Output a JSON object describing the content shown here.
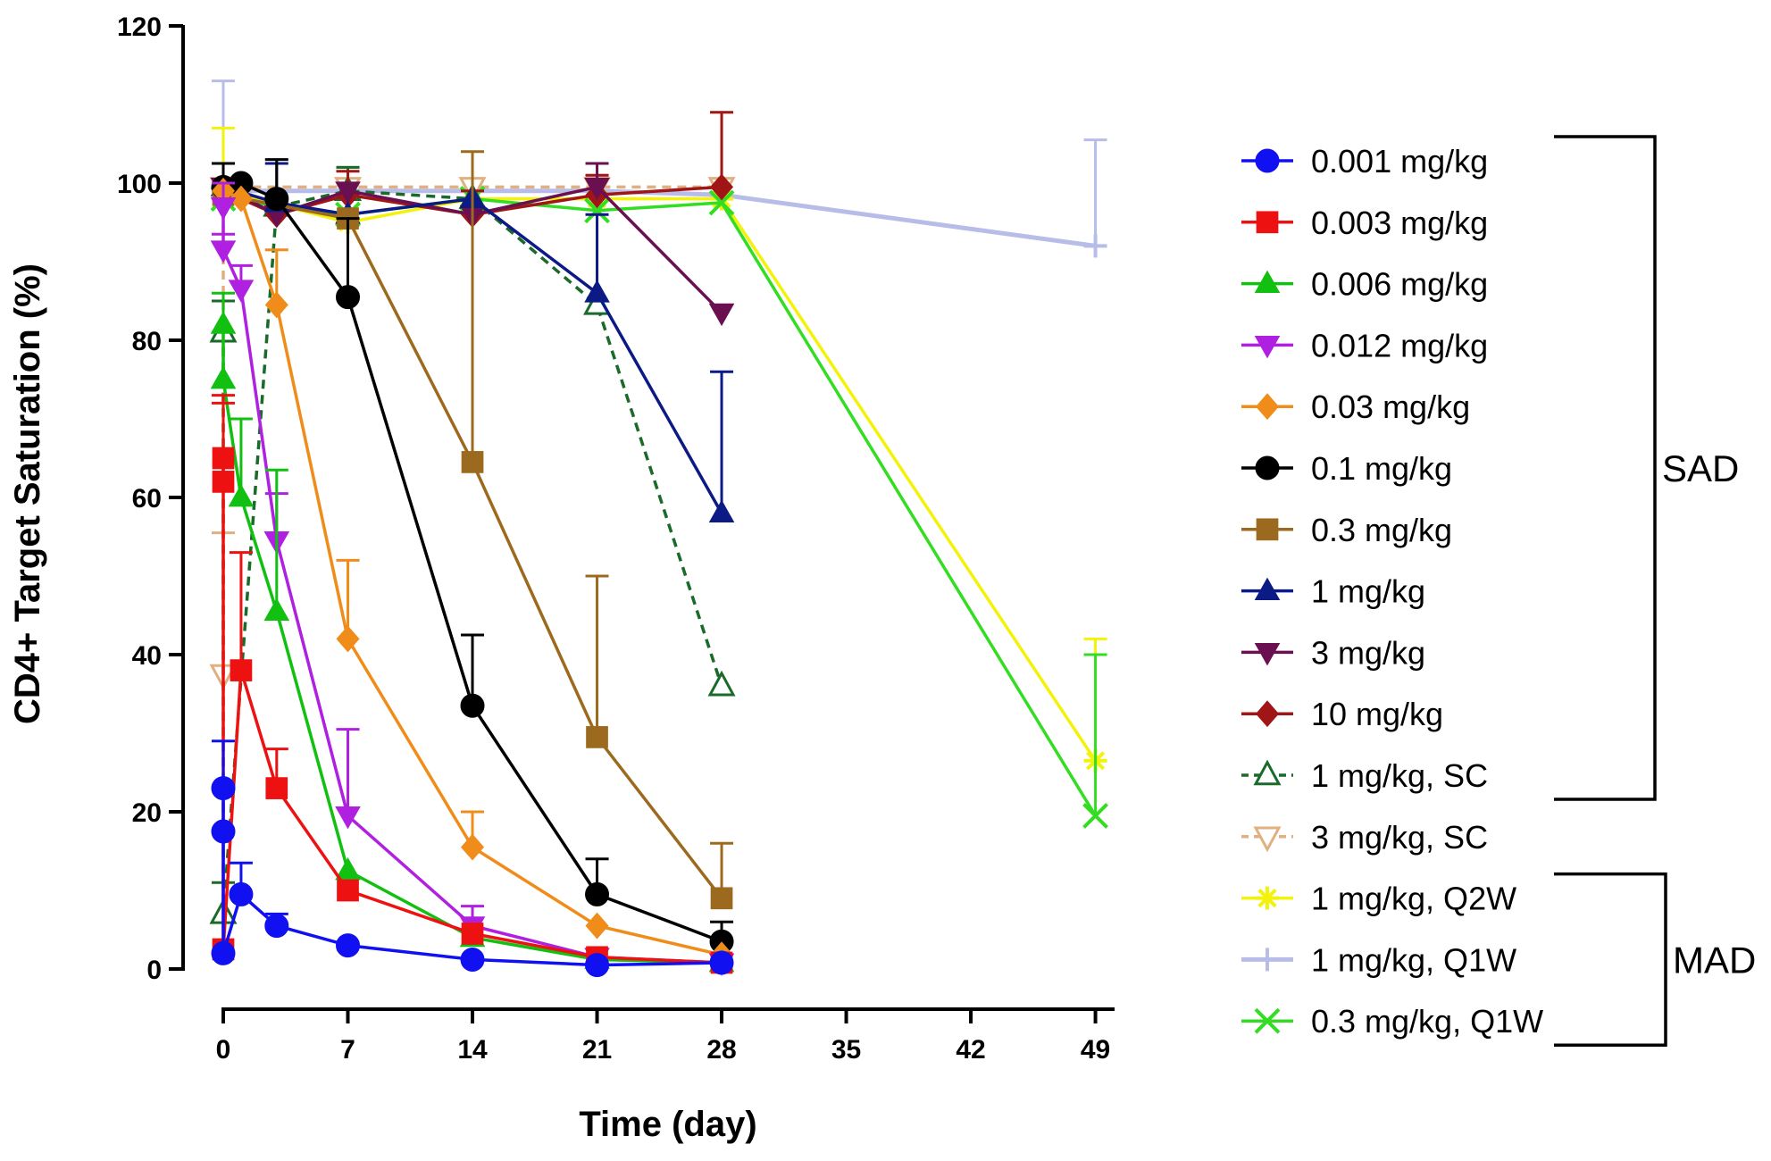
{
  "chart_data": {
    "type": "line",
    "xlabel": "Time (day)",
    "ylabel": "CD4+ Target Saturation (%)",
    "xlim": [
      -1,
      50
    ],
    "ylim": [
      0,
      120
    ],
    "xticks": [
      0,
      7,
      14,
      21,
      28,
      35,
      42,
      49
    ],
    "yticks": [
      0,
      20,
      40,
      60,
      80,
      100,
      120
    ],
    "grid": false,
    "legend_position": "right",
    "groups": [
      {
        "label": "SAD",
        "from": 0,
        "to": 10
      },
      {
        "label": "MAD",
        "from": 12,
        "to": 14
      }
    ],
    "series": [
      {
        "name": "0.001 mg/kg",
        "color": "#1010f0",
        "marker": "circle",
        "dash": false,
        "x": [
          0,
          0,
          0,
          1,
          3,
          7,
          14,
          21,
          28
        ],
        "y": [
          23,
          17.5,
          2,
          9.5,
          5.5,
          3,
          1.2,
          0.5,
          0.8
        ],
        "err": [
          6,
          0,
          0,
          4,
          1.5,
          0,
          0,
          0,
          0
        ]
      },
      {
        "name": "0.003 mg/kg",
        "color": "#ee1111",
        "marker": "square",
        "dash": false,
        "x": [
          0,
          0,
          0,
          1,
          3,
          7,
          14,
          21,
          28
        ],
        "y": [
          65,
          62,
          2.5,
          38,
          23,
          10,
          4.5,
          1.5,
          0.8
        ],
        "err": [
          8,
          10,
          0,
          15,
          5,
          0,
          0,
          0,
          0
        ]
      },
      {
        "name": "0.006 mg/kg",
        "color": "#11c011",
        "marker": "triangle-up",
        "dash": false,
        "x": [
          0,
          0,
          1,
          3,
          7,
          14,
          21,
          28
        ],
        "y": [
          82,
          75,
          60,
          45.5,
          12.5,
          4,
          1.2,
          0.8
        ],
        "err": [
          4,
          0,
          10,
          18,
          0,
          0,
          0,
          0
        ]
      },
      {
        "name": "0.012 mg/kg",
        "color": "#b020e0",
        "marker": "triangle-down",
        "dash": false,
        "x": [
          0,
          0,
          1,
          3,
          7,
          14,
          21,
          28
        ],
        "y": [
          97,
          91.5,
          86.5,
          54.5,
          19.5,
          5.5,
          1.5,
          0.8
        ],
        "err": [
          3,
          2,
          3,
          6,
          11,
          2.5,
          0,
          0
        ]
      },
      {
        "name": "0.03 mg/kg",
        "color": "#f08c1a",
        "marker": "diamond",
        "dash": false,
        "x": [
          0,
          1,
          3,
          7,
          14,
          21,
          28
        ],
        "y": [
          99,
          98,
          84.5,
          42,
          15.5,
          5.5,
          1.8
        ],
        "err": [
          0,
          0,
          7,
          10,
          4.5,
          0,
          0
        ]
      },
      {
        "name": "0.1 mg/kg",
        "color": "#000000",
        "marker": "circle",
        "dash": false,
        "x": [
          0,
          1,
          3,
          7,
          14,
          21,
          28
        ],
        "y": [
          99.5,
          100,
          98,
          85.5,
          33.5,
          9.5,
          3.5
        ],
        "err": [
          3,
          0,
          5,
          10,
          9,
          4.5,
          2.5
        ]
      },
      {
        "name": "0.3 mg/kg",
        "color": "#9c6a1f",
        "marker": "square",
        "dash": false,
        "x": [
          0,
          7,
          14,
          21,
          28
        ],
        "y": [
          98.5,
          95.5,
          64.5,
          29.5,
          9
        ],
        "err": [
          0,
          0,
          39.5,
          20.5,
          7
        ]
      },
      {
        "name": "1 mg/kg",
        "color": "#0c1a86",
        "marker": "triangle-up",
        "dash": false,
        "x": [
          0,
          3,
          7,
          14,
          21,
          28
        ],
        "y": [
          99.5,
          97.5,
          96,
          98,
          86,
          58
        ],
        "err": [
          3,
          5,
          0,
          0,
          10,
          18
        ]
      },
      {
        "name": "3 mg/kg",
        "color": "#6a1050",
        "marker": "triangle-down",
        "dash": false,
        "x": [
          0,
          3,
          7,
          14,
          21,
          28
        ],
        "y": [
          99.5,
          96,
          99,
          96,
          99.5,
          83.5
        ],
        "err": [
          0,
          0,
          0,
          0,
          3,
          0
        ]
      },
      {
        "name": "10 mg/kg",
        "color": "#a01515",
        "marker": "diamond",
        "dash": false,
        "x": [
          0,
          3,
          7,
          14,
          21,
          28
        ],
        "y": [
          99,
          96,
          98.5,
          96,
          98.5,
          99.5
        ],
        "err": [
          0,
          0,
          3,
          3,
          2.5,
          9.5
        ]
      },
      {
        "name": "1 mg/kg, SC",
        "color": "#1a6a2a",
        "marker": "triangle-up-open",
        "dash": true,
        "x": [
          0,
          0,
          3,
          7,
          14,
          21,
          28
        ],
        "y": [
          81,
          7,
          97,
          99,
          98,
          84.5,
          36
        ],
        "err": [
          4,
          4,
          0,
          3,
          0,
          0,
          0
        ]
      },
      {
        "name": "3 mg/kg, SC",
        "color": "#e0b080",
        "marker": "triangle-down-open",
        "dash": true,
        "x": [
          0,
          0,
          7,
          14,
          21,
          28
        ],
        "y": [
          37.5,
          99.5,
          99.5,
          99.5,
          99.5,
          99.5
        ],
        "err": [
          18,
          0,
          0,
          0,
          0,
          0
        ]
      },
      {
        "name": "1 mg/kg, Q2W",
        "color": "#f2f20a",
        "marker": "star",
        "dash": false,
        "x": [
          0,
          7,
          14,
          21,
          28,
          49
        ],
        "y": [
          99,
          95,
          98,
          98,
          98,
          26.5
        ],
        "err": [
          8,
          0,
          0,
          0,
          0,
          15.5
        ]
      },
      {
        "name": "1 mg/kg, Q1W",
        "color": "#b8bce8",
        "marker": "plus",
        "dash": false,
        "x": [
          0,
          14,
          21,
          28,
          49
        ],
        "y": [
          99,
          99,
          99,
          98.5,
          92
        ],
        "err": [
          14,
          0,
          2,
          0,
          13.5
        ]
      },
      {
        "name": "0.3 mg/kg, Q1W",
        "color": "#33dd22",
        "marker": "x",
        "dash": false,
        "x": [
          0,
          7,
          14,
          21,
          28,
          49
        ],
        "y": [
          98,
          96,
          98,
          96.5,
          97.5,
          19.5
        ],
        "err": [
          0,
          6,
          0,
          0,
          0,
          20.5
        ]
      }
    ]
  }
}
